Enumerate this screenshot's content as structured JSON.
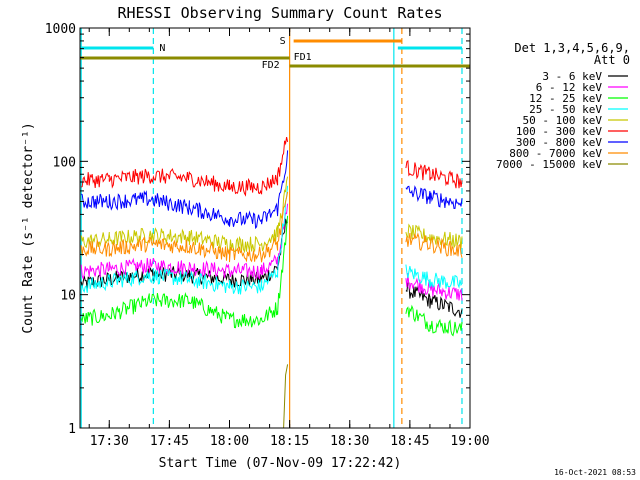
{
  "chart_data": {
    "type": "line",
    "title": "RHESSI Observing Summary Count Rates",
    "xlabel": "Start Time (07-Nov-09 17:22:42)",
    "ylabel": "Count Rate (s⁻¹ detector⁻¹)",
    "y_scale": "log",
    "ylim": [
      1,
      1000
    ],
    "xlim": [
      "17:22:42",
      "19:00:00"
    ],
    "x_ticks": [
      "17:30",
      "17:45",
      "18:00",
      "18:15",
      "18:30",
      "18:45",
      "19:00"
    ],
    "y_ticks": [
      "1",
      "10",
      "100",
      "1000"
    ],
    "legend_title": "Det 1,3,4,5,6,9,",
    "legend_subtitle": "Att 0",
    "legend_position": "right",
    "timestamp": "16-Oct-2021 08:53",
    "bars": [
      {
        "label": "N",
        "color": "#00e5ee",
        "segments": [
          [
            "17:22:42",
            "17:41"
          ],
          [
            "18:42",
            "18:58"
          ]
        ]
      },
      {
        "label": "S",
        "color": "#ff8c00",
        "segments": [
          [
            "18:16",
            "18:43"
          ]
        ]
      },
      {
        "label": "FD1",
        "color": "#8b8b00",
        "segments": [
          [
            "17:22:42",
            "18:15"
          ]
        ]
      },
      {
        "label": "FD2",
        "color": "#8b8b00",
        "segments": [
          [
            "18:15",
            "19:00"
          ]
        ]
      }
    ],
    "vlines": [
      {
        "time": "17:23",
        "color": "#00e5ee",
        "style": "solid"
      },
      {
        "time": "17:41",
        "color": "#00e5ee",
        "style": "dashed"
      },
      {
        "time": "18:15",
        "color": "#ff8c00",
        "style": "solid"
      },
      {
        "time": "18:41",
        "color": "#00e5ee",
        "style": "solid"
      },
      {
        "time": "18:43",
        "color": "#ff8c00",
        "style": "dashed"
      },
      {
        "time": "18:58",
        "color": "#00e5ee",
        "style": "dashed"
      }
    ],
    "series": [
      {
        "name": "3 - 6 keV",
        "color": "#000000",
        "points": [
          [
            "17:23",
            12
          ],
          [
            "17:30",
            13
          ],
          [
            "17:40",
            14.5
          ],
          [
            "17:50",
            14
          ],
          [
            "18:00",
            13
          ],
          [
            "18:08",
            13
          ],
          [
            "18:12",
            16
          ],
          [
            "18:14.5",
            40
          ],
          [
            "18:44",
            11
          ],
          [
            "18:50",
            9
          ],
          [
            "18:58",
            7.5
          ]
        ]
      },
      {
        "name": "6 - 12 keV",
        "color": "#ff00ff",
        "points": [
          [
            "17:23",
            15
          ],
          [
            "17:30",
            15.5
          ],
          [
            "17:40",
            16.5
          ],
          [
            "17:50",
            16
          ],
          [
            "18:00",
            15
          ],
          [
            "18:08",
            15
          ],
          [
            "18:12",
            18
          ],
          [
            "18:14.5",
            45
          ],
          [
            "18:44",
            13
          ],
          [
            "18:50",
            11
          ],
          [
            "18:58",
            10
          ]
        ]
      },
      {
        "name": "12 - 25 keV",
        "color": "#00ff00",
        "points": [
          [
            "17:23",
            6.5
          ],
          [
            "17:30",
            7
          ],
          [
            "17:40",
            9
          ],
          [
            "17:50",
            9
          ],
          [
            "18:00",
            6.5
          ],
          [
            "18:08",
            6.5
          ],
          [
            "18:12",
            8
          ],
          [
            "18:14.5",
            35
          ],
          [
            "18:44",
            8
          ],
          [
            "18:50",
            6
          ],
          [
            "18:58",
            5.5
          ]
        ]
      },
      {
        "name": "25 - 50 keV",
        "color": "#00ffff",
        "points": [
          [
            "17:23",
            11.5
          ],
          [
            "17:30",
            12.5
          ],
          [
            "17:40",
            14
          ],
          [
            "17:50",
            13
          ],
          [
            "18:00",
            11.5
          ],
          [
            "18:08",
            11.5
          ],
          [
            "18:12",
            15
          ],
          [
            "18:14.5",
            60
          ],
          [
            "18:44",
            15
          ],
          [
            "18:50",
            13
          ],
          [
            "18:58",
            12
          ]
        ]
      },
      {
        "name": "50 - 100 keV",
        "color": "#c8c800",
        "points": [
          [
            "17:23",
            25
          ],
          [
            "17:30",
            26
          ],
          [
            "17:40",
            28
          ],
          [
            "17:50",
            27
          ],
          [
            "18:00",
            24
          ],
          [
            "18:08",
            24
          ],
          [
            "18:12",
            29
          ],
          [
            "18:14.5",
            70
          ],
          [
            "18:44",
            30
          ],
          [
            "18:50",
            27
          ],
          [
            "18:58",
            25
          ]
        ]
      },
      {
        "name": "100 - 300 keV",
        "color": "#ff0000",
        "points": [
          [
            "17:23",
            72
          ],
          [
            "17:30",
            73
          ],
          [
            "17:40",
            78
          ],
          [
            "17:50",
            75
          ],
          [
            "18:00",
            64
          ],
          [
            "18:08",
            64
          ],
          [
            "18:12",
            75
          ],
          [
            "18:14.5",
            160
          ],
          [
            "18:44",
            90
          ],
          [
            "18:50",
            80
          ],
          [
            "18:58",
            70
          ]
        ]
      },
      {
        "name": "300 - 800 keV",
        "color": "#0000ff",
        "points": [
          [
            "17:23",
            50
          ],
          [
            "17:30",
            50
          ],
          [
            "17:40",
            52
          ],
          [
            "17:50",
            45
          ],
          [
            "18:00",
            37
          ],
          [
            "18:08",
            36
          ],
          [
            "18:12",
            44
          ],
          [
            "18:14.5",
            110
          ],
          [
            "18:44",
            60
          ],
          [
            "18:50",
            54
          ],
          [
            "18:58",
            48
          ]
        ]
      },
      {
        "name": "800 - 7000 keV",
        "color": "#ff8c00",
        "points": [
          [
            "17:23",
            22
          ],
          [
            "17:30",
            22
          ],
          [
            "17:40",
            24
          ],
          [
            "17:50",
            23
          ],
          [
            "18:00",
            20
          ],
          [
            "18:08",
            20
          ],
          [
            "18:12",
            24
          ],
          [
            "18:14.5",
            55
          ],
          [
            "18:44",
            26
          ],
          [
            "18:50",
            24
          ],
          [
            "18:58",
            21
          ]
        ]
      },
      {
        "name": "7000 - 15000 keV",
        "color": "#8b8b00",
        "points": [
          [
            "18:13.5",
            1
          ],
          [
            "18:14",
            2.5
          ],
          [
            "18:14.5",
            3
          ]
        ]
      }
    ]
  }
}
